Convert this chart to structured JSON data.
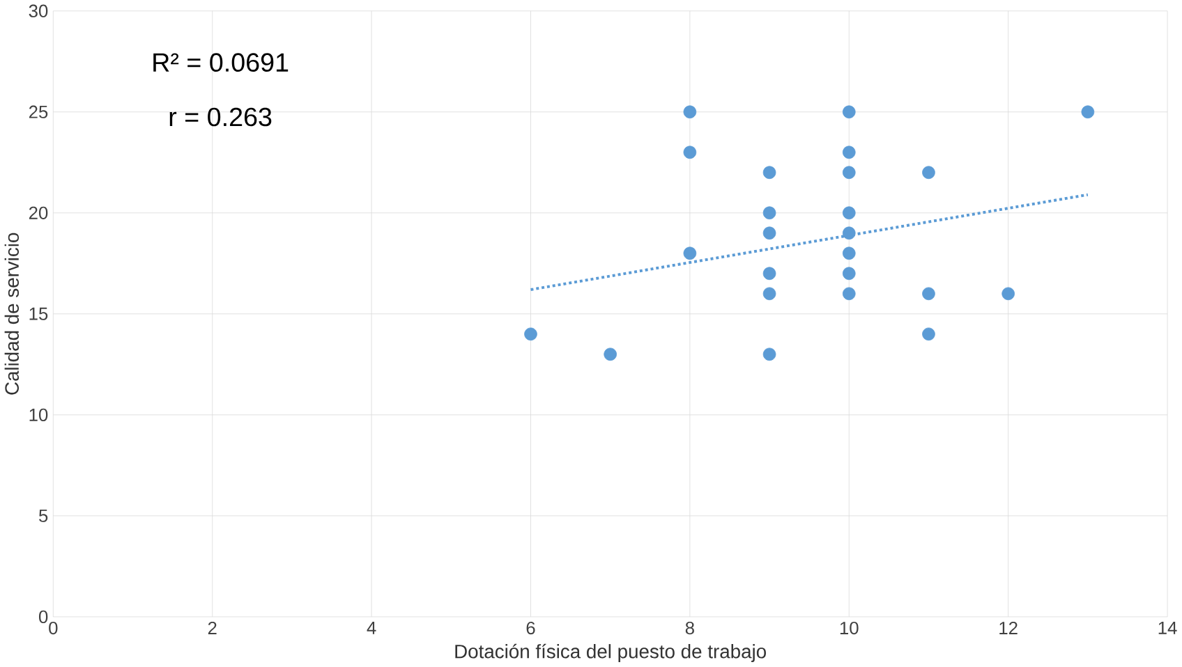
{
  "chart_data": {
    "type": "scatter",
    "xlabel": "Dotación física del puesto de trabajo",
    "ylabel": "Calidad de servicio",
    "xlim": [
      0,
      14
    ],
    "xticks": [
      0,
      2,
      4,
      6,
      8,
      10,
      12,
      14
    ],
    "ylim": [
      0,
      30
    ],
    "yticks": [
      0,
      5,
      10,
      15,
      20,
      25,
      30
    ],
    "grid": true,
    "annotations": [
      "R² = 0.0691",
      "r = 0.263"
    ],
    "series": [
      {
        "marker": "circle",
        "color": "#5b9bd5",
        "x": [
          6,
          7,
          8,
          8,
          8,
          9,
          9,
          9,
          9,
          9,
          9,
          10,
          10,
          10,
          10,
          10,
          10,
          10,
          10,
          11,
          11,
          11,
          12,
          13
        ],
        "values": [
          14,
          13,
          25,
          23,
          18,
          22,
          20,
          19,
          17,
          16,
          13,
          25,
          23,
          22,
          20,
          19,
          18,
          17,
          16,
          22,
          16,
          14,
          16,
          25
        ]
      },
      {
        "type": "line",
        "line_style": "dotted",
        "color": "#5b9bd5",
        "x": [
          6,
          13
        ],
        "values": [
          16.2,
          20.9
        ]
      }
    ]
  }
}
